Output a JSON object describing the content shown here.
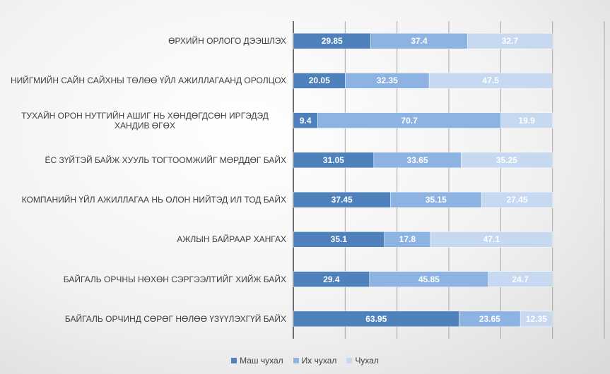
{
  "chart_data": {
    "type": "stacked_barh",
    "categories": [
      "ӨРХИЙН ОРЛОГО ДЭЭШЛЭХ",
      "НИЙГМИЙН САЙН САЙХНЫ ТӨЛӨӨ ҮЙЛ АЖИЛЛАГААНД ОРОЛЦОХ",
      "ТУХАЙН ОРОН НУТГИЙН АШИГ НЬ ХӨНДӨГДСӨН ИРГЭДЭД ХАНДИВ ӨГӨХ",
      "ЁС ЗҮЙТЭЙ БАЙЖ ХУУЛЬ ТОГТООМЖИЙГ МӨРДДӨГ БАЙХ",
      "КОМПАНИЙН ҮЙЛ АЖИЛЛАГАА НЬ ОЛОН НИЙТЭД ИЛ ТОД БАЙХ",
      "АЖЛЫН БАЙРААР ХАНГАХ",
      "БАЙГАЛЬ ОРЧНЫ НӨХӨН СЭРГЭЭЛТИЙГ ХИЙЖ БАЙХ",
      "БАЙГАЛЬ ОРЧИНД СӨРӨГ НӨЛӨӨ ҮЗҮҮЛЭХГҮЙ БАЙХ"
    ],
    "series": [
      {
        "name": "Маш чухал",
        "color": "#4f81bd",
        "values": [
          29.85,
          20.05,
          9.4,
          31.05,
          37.45,
          35.1,
          29.4,
          63.95
        ]
      },
      {
        "name": "Их чухал",
        "color": "#8db3e2",
        "values": [
          37.4,
          32.35,
          70.7,
          33.65,
          35.15,
          17.8,
          45.85,
          23.65
        ]
      },
      {
        "name": "Чухал",
        "color": "#c6d9f1",
        "values": [
          32.7,
          47.5,
          19.9,
          35.25,
          27.45,
          47.1,
          24.7,
          12.35
        ]
      }
    ],
    "xlim": [
      0,
      120
    ],
    "xticks": [
      0,
      20,
      40,
      60,
      80,
      100,
      120
    ],
    "grid": true,
    "legend": "bottom"
  }
}
